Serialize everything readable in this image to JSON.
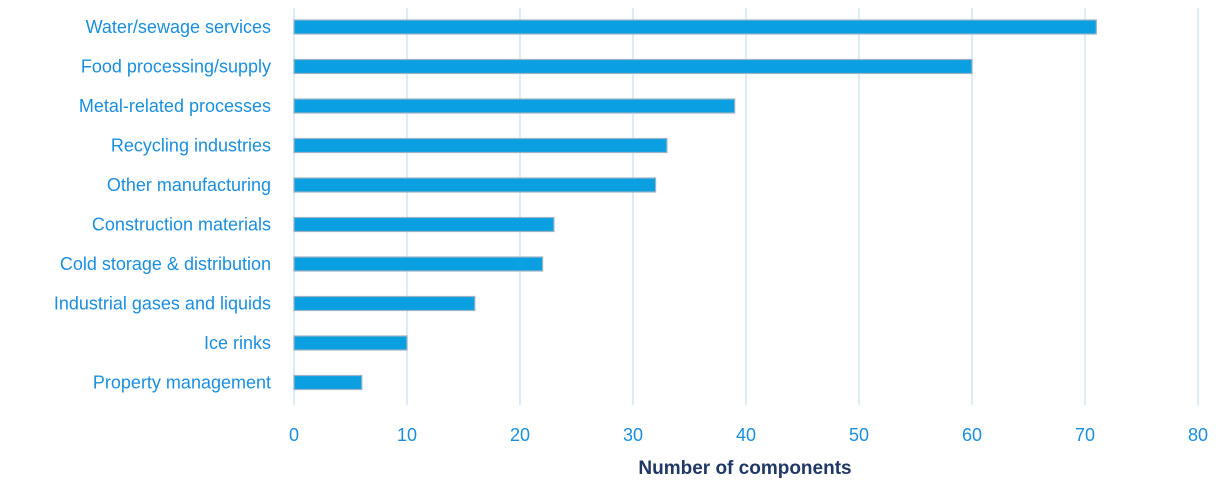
{
  "chart_data": {
    "type": "bar",
    "orientation": "horizontal",
    "categories": [
      "Water/sewage services",
      "Food processing/supply",
      "Metal-related processes",
      "Recycling industries",
      "Other manufacturing",
      "Construction materials",
      "Cold storage & distribution",
      "Industrial gases and liquids",
      "Ice rinks",
      "Property management"
    ],
    "values": [
      71,
      60,
      39,
      33,
      32,
      23,
      22,
      16,
      10,
      6
    ],
    "xlabel": "Number of components",
    "xlim": [
      0,
      80
    ],
    "xticks": [
      "0",
      "10",
      "20",
      "30",
      "40",
      "50",
      "60",
      "70",
      "80"
    ],
    "grid": "vertical",
    "legend": "none",
    "colors": {
      "bar": "#0a9fe0",
      "bar_outline": "#9bb3c4",
      "text": "#1a8fdf",
      "axis_title": "#1f3864",
      "grid": "#c6dff0"
    }
  }
}
